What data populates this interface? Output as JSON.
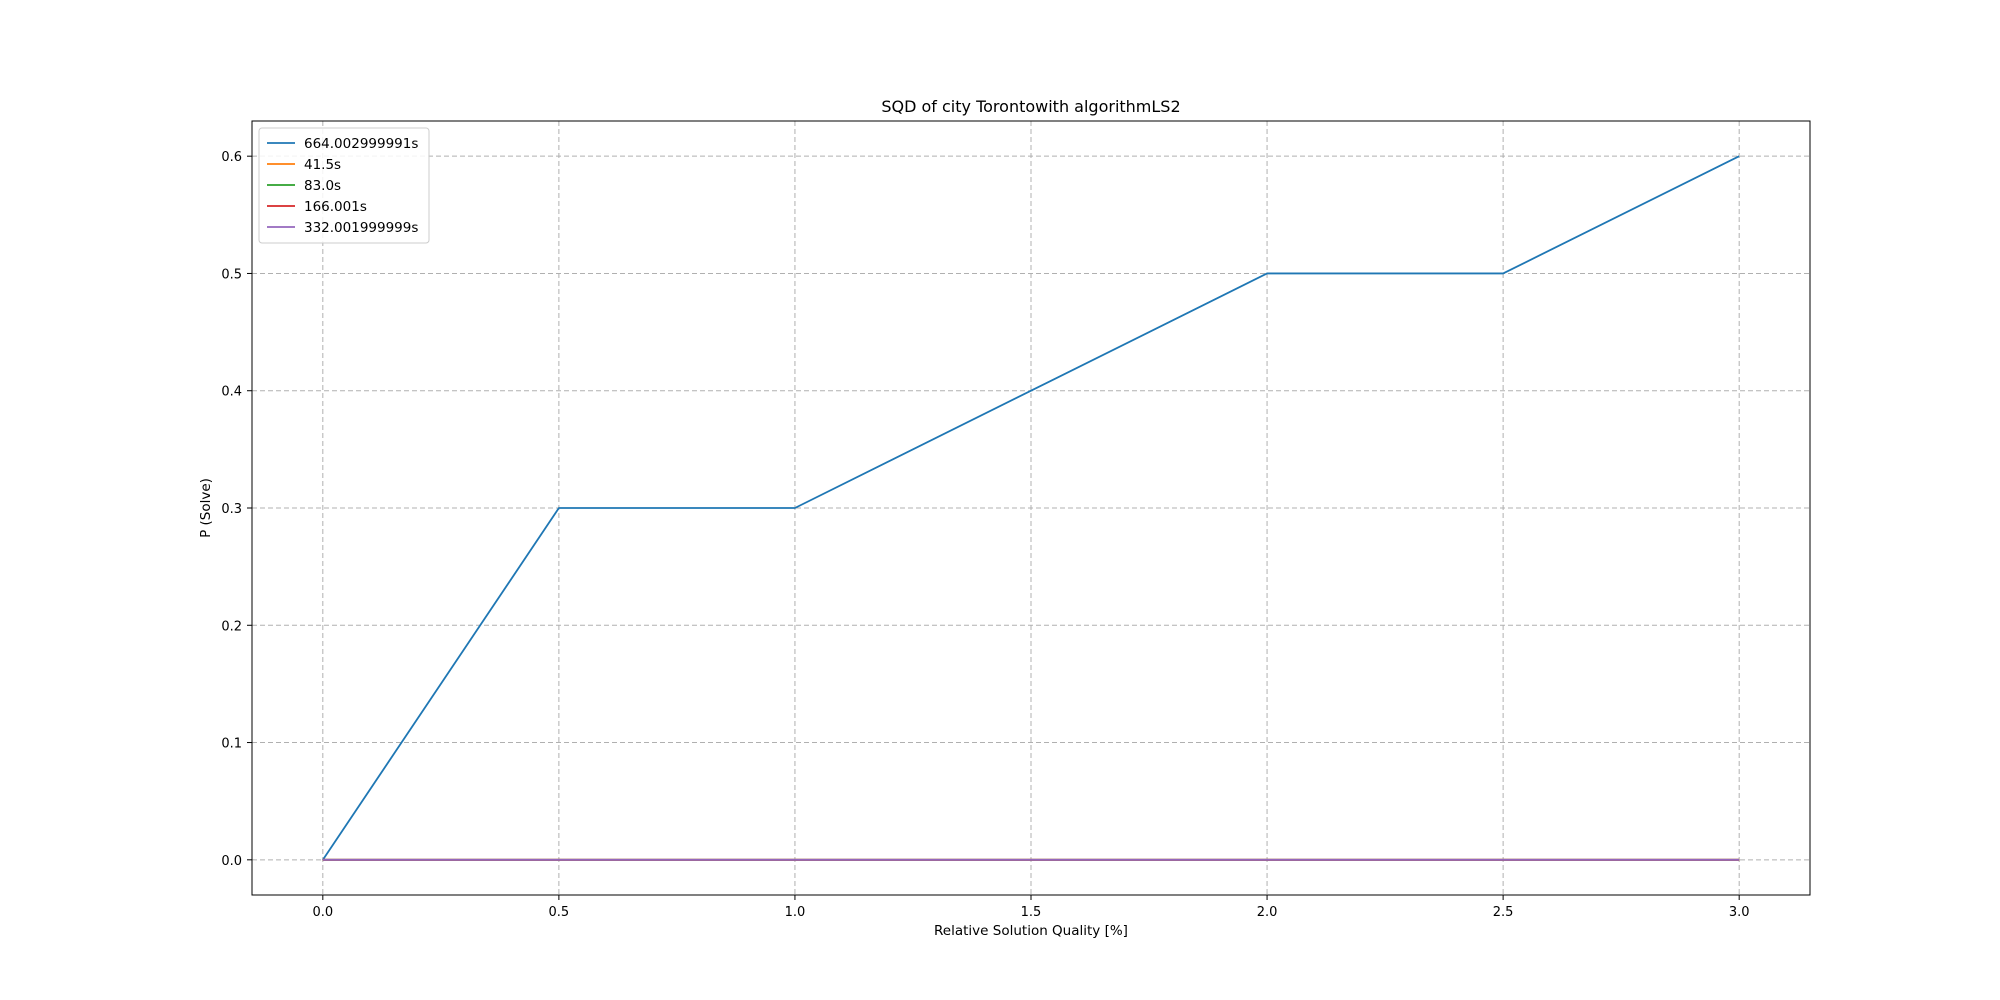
{
  "chart_data": {
    "type": "line",
    "title": "SQD of city Torontowith algorithmLS2",
    "xlabel": "Relative Solution Quality [%]",
    "ylabel": "P (Solve)",
    "xlim": [
      -0.15,
      3.15
    ],
    "ylim": [
      -0.03,
      0.63
    ],
    "xticks": [
      "0.0",
      "0.5",
      "1.0",
      "1.5",
      "2.0",
      "2.5",
      "3.0"
    ],
    "yticks": [
      "0.0",
      "0.1",
      "0.2",
      "0.3",
      "0.4",
      "0.5",
      "0.6"
    ],
    "grid": true,
    "legend_position": "upper-left",
    "x": [
      0.0,
      0.5,
      1.0,
      1.5,
      2.0,
      2.5,
      3.0
    ],
    "series": [
      {
        "name": "664.002999991s",
        "color": "#1f77b4",
        "values": [
          0.0,
          0.3,
          0.3,
          0.4,
          0.5,
          0.5,
          0.6
        ]
      },
      {
        "name": "41.5s",
        "color": "#ff7f0e",
        "values": [
          0.0,
          0.0,
          0.0,
          0.0,
          0.0,
          0.0,
          0.0
        ]
      },
      {
        "name": "83.0s",
        "color": "#2ca02c",
        "values": [
          0.0,
          0.0,
          0.0,
          0.0,
          0.0,
          0.0,
          0.0
        ]
      },
      {
        "name": "166.001s",
        "color": "#d62728",
        "values": [
          0.0,
          0.0,
          0.0,
          0.0,
          0.0,
          0.0,
          0.0
        ]
      },
      {
        "name": "332.001999999s",
        "color": "#9467bd",
        "values": [
          0.0,
          0.0,
          0.0,
          0.0,
          0.0,
          0.0,
          0.0
        ]
      }
    ]
  }
}
